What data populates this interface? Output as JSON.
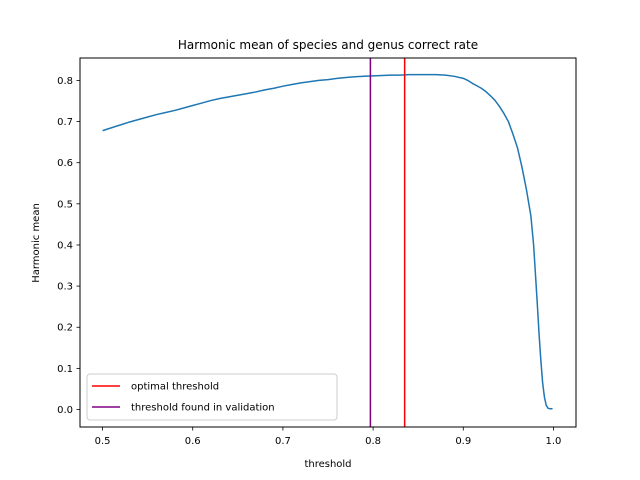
{
  "chart_data": {
    "type": "line",
    "title": "Harmonic mean of species and genus correct rate",
    "xlabel": "threshold",
    "ylabel": "Harmonic mean",
    "xlim": [
      0.475,
      1.025
    ],
    "ylim": [
      -0.0425,
      0.8545
    ],
    "xticks": [
      0.5,
      0.6,
      0.7,
      0.8,
      0.9,
      1.0
    ],
    "xtick_labels": [
      "0.5",
      "0.6",
      "0.7",
      "0.8",
      "0.9",
      "1.0"
    ],
    "yticks": [
      0.0,
      0.1,
      0.2,
      0.3,
      0.4,
      0.5,
      0.6,
      0.7,
      0.8
    ],
    "ytick_labels": [
      "0.0",
      "0.1",
      "0.2",
      "0.3",
      "0.4",
      "0.5",
      "0.6",
      "0.7",
      "0.8"
    ],
    "grid": false,
    "legend_position": "lower-left",
    "series": [
      {
        "color": "#1f77b4",
        "x": [
          0.5,
          0.51,
          0.52,
          0.53,
          0.54,
          0.55,
          0.56,
          0.57,
          0.58,
          0.59,
          0.6,
          0.61,
          0.62,
          0.63,
          0.64,
          0.65,
          0.66,
          0.67,
          0.68,
          0.69,
          0.7,
          0.71,
          0.72,
          0.73,
          0.74,
          0.75,
          0.76,
          0.77,
          0.78,
          0.79,
          0.8,
          0.81,
          0.82,
          0.83,
          0.84,
          0.85,
          0.86,
          0.87,
          0.88,
          0.89,
          0.9,
          0.905,
          0.91,
          0.915,
          0.92,
          0.925,
          0.93,
          0.935,
          0.94,
          0.945,
          0.95,
          0.955,
          0.96,
          0.965,
          0.97,
          0.975,
          0.978,
          0.98,
          0.982,
          0.984,
          0.986,
          0.988,
          0.99,
          0.992,
          0.994,
          0.996,
          0.998,
          0.999
        ],
        "y": [
          0.678,
          0.685,
          0.692,
          0.699,
          0.705,
          0.711,
          0.717,
          0.722,
          0.727,
          0.733,
          0.739,
          0.745,
          0.751,
          0.756,
          0.76,
          0.764,
          0.768,
          0.772,
          0.777,
          0.781,
          0.786,
          0.79,
          0.794,
          0.797,
          0.8,
          0.802,
          0.805,
          0.807,
          0.809,
          0.81,
          0.811,
          0.812,
          0.813,
          0.813,
          0.814,
          0.814,
          0.814,
          0.814,
          0.813,
          0.81,
          0.805,
          0.8,
          0.793,
          0.787,
          0.781,
          0.773,
          0.763,
          0.752,
          0.737,
          0.72,
          0.7,
          0.67,
          0.637,
          0.59,
          0.535,
          0.47,
          0.4,
          0.33,
          0.26,
          0.185,
          0.12,
          0.065,
          0.03,
          0.01,
          0.003,
          0.002,
          0.002,
          0.002
        ]
      }
    ],
    "vlines": [
      {
        "name": "optimal threshold",
        "x": 0.835,
        "color": "#ff0000"
      },
      {
        "name": "threshold found in validation",
        "x": 0.797,
        "color": "#800080"
      }
    ]
  }
}
